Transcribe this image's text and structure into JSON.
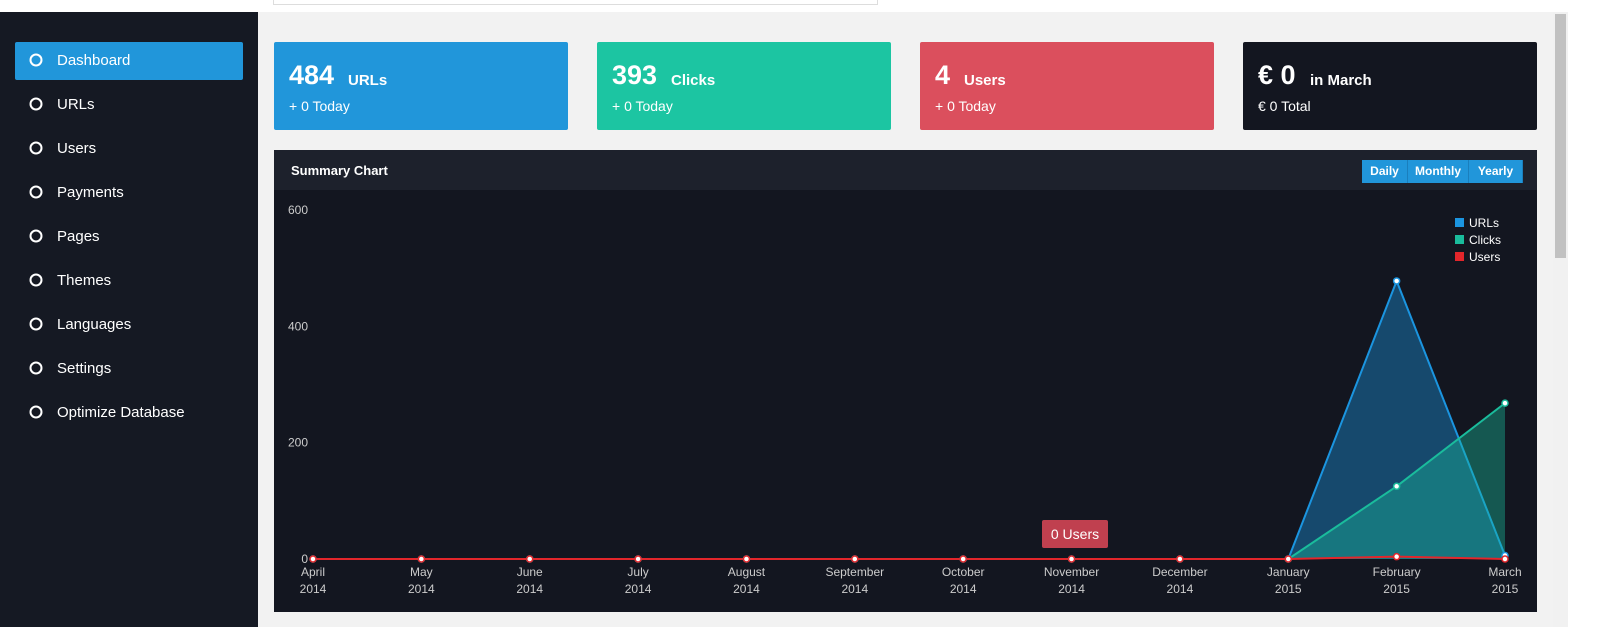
{
  "sidebar": {
    "items": [
      "Dashboard",
      "URLs",
      "Users",
      "Payments",
      "Pages",
      "Themes",
      "Languages",
      "Settings",
      "Optimize Database"
    ],
    "active": 0
  },
  "stats": [
    {
      "value": "484",
      "label": "URLs",
      "sub": "+ 0 Today",
      "color": "#2196da"
    },
    {
      "value": "393",
      "label": "Clicks",
      "sub": "+ 0 Today",
      "color": "#1cc5a2"
    },
    {
      "value": "4",
      "label": "Users",
      "sub": "+ 0 Today",
      "color": "#db4f5d"
    },
    {
      "value": "€ 0",
      "label": "in March",
      "sub": "€ 0 Total",
      "color": "#131620"
    }
  ],
  "panel": {
    "title": "Summary Chart",
    "buttons": [
      "Daily",
      "Monthly",
      "Yearly"
    ]
  },
  "chart_data": {
    "type": "line",
    "categories": [
      [
        "April",
        "2014"
      ],
      [
        "May",
        "2014"
      ],
      [
        "June",
        "2014"
      ],
      [
        "July",
        "2014"
      ],
      [
        "August",
        "2014"
      ],
      [
        "September",
        "2014"
      ],
      [
        "October",
        "2014"
      ],
      [
        "November",
        "2014"
      ],
      [
        "December",
        "2014"
      ],
      [
        "January",
        "2015"
      ],
      [
        "February",
        "2015"
      ],
      [
        "March",
        "2015"
      ]
    ],
    "series": [
      {
        "name": "URLs",
        "color": "#1b95e0",
        "values": [
          0,
          0,
          0,
          0,
          0,
          0,
          0,
          0,
          0,
          0,
          478,
          6
        ]
      },
      {
        "name": "Clicks",
        "color": "#1abc9c",
        "values": [
          0,
          0,
          0,
          0,
          0,
          0,
          0,
          0,
          0,
          0,
          125,
          268
        ]
      },
      {
        "name": "Users",
        "color": "#e3262b",
        "values": [
          0,
          0,
          0,
          0,
          0,
          0,
          0,
          0,
          0,
          0,
          4,
          0
        ]
      }
    ],
    "ylim": [
      0,
      600
    ],
    "yticks": [
      0,
      200,
      400,
      600
    ],
    "legend": "top-right",
    "tooltip": "0 Users"
  }
}
